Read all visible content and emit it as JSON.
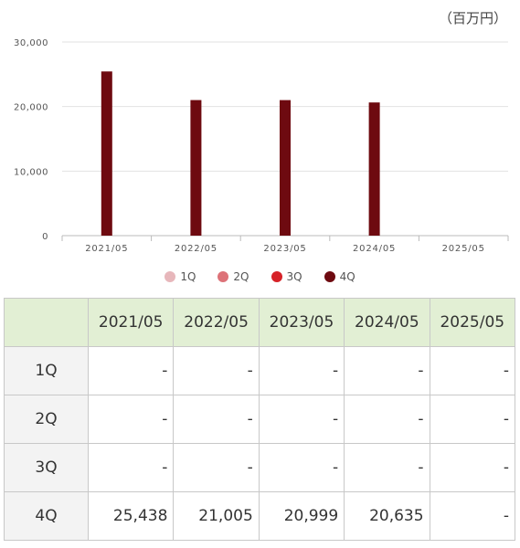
{
  "unit_label": "（百万円）",
  "chart_data": {
    "type": "bar",
    "categories": [
      "2021/05",
      "2022/05",
      "2023/05",
      "2024/05",
      "2025/05"
    ],
    "series": [
      {
        "name": "1Q",
        "values": [
          null,
          null,
          null,
          null,
          null
        ]
      },
      {
        "name": "2Q",
        "values": [
          null,
          null,
          null,
          null,
          null
        ]
      },
      {
        "name": "3Q",
        "values": [
          null,
          null,
          null,
          null,
          null
        ]
      },
      {
        "name": "4Q",
        "values": [
          25438,
          21005,
          20999,
          20635,
          null
        ]
      }
    ],
    "ylim": [
      0,
      30000
    ],
    "yticks": [
      "0",
      "10,000",
      "20,000",
      "30,000"
    ],
    "ytick_values": [
      0,
      10000,
      20000,
      30000
    ],
    "grid": true,
    "legend_position": "bottom"
  },
  "legend": [
    {
      "label": "1Q",
      "color": "#e7b7bb"
    },
    {
      "label": "2Q",
      "color": "#dd7278"
    },
    {
      "label": "3Q",
      "color": "#d62228"
    },
    {
      "label": "4Q",
      "color": "#6e0a10"
    }
  ],
  "table": {
    "corner": "",
    "headers": [
      "2021/05",
      "2022/05",
      "2023/05",
      "2024/05",
      "2025/05"
    ],
    "rows": [
      {
        "label": "1Q",
        "cells": [
          "-",
          "-",
          "-",
          "-",
          "-"
        ]
      },
      {
        "label": "2Q",
        "cells": [
          "-",
          "-",
          "-",
          "-",
          "-"
        ]
      },
      {
        "label": "3Q",
        "cells": [
          "-",
          "-",
          "-",
          "-",
          "-"
        ]
      },
      {
        "label": "4Q",
        "cells": [
          "25,438",
          "21,005",
          "20,999",
          "20,635",
          "-"
        ]
      }
    ]
  }
}
